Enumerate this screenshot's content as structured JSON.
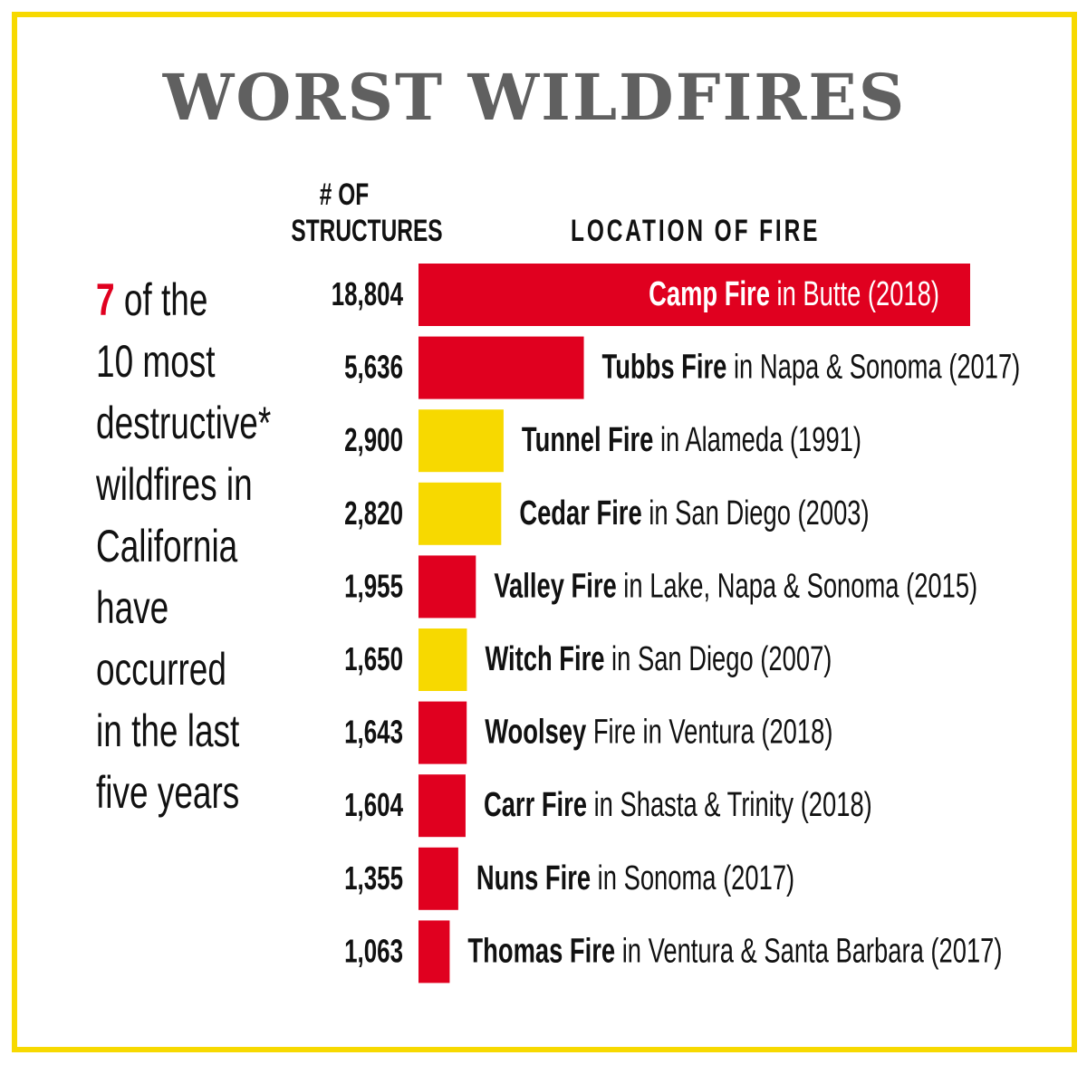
{
  "colors": {
    "recent": "#e0001f",
    "older": "#f7d900",
    "border": "#f7d900",
    "title": "#606060"
  },
  "chart_data": {
    "type": "bar",
    "orientation": "horizontal",
    "title": "WORST WILDFIRES",
    "value_header": [
      "# OF",
      "STRUCTURES"
    ],
    "label_header": "LOCATION OF FIRE",
    "rows": [
      {
        "value": 18804,
        "value_label": "18,804",
        "name": "Camp Fire",
        "rest": " in Butte (2018)",
        "recent": true
      },
      {
        "value": 5636,
        "value_label": "5,636",
        "name": "Tubbs Fire",
        "rest": " in Napa & Sonoma (2017)",
        "recent": true
      },
      {
        "value": 2900,
        "value_label": "2,900",
        "name": "Tunnel Fire",
        "rest": " in Alameda (1991)",
        "recent": false
      },
      {
        "value": 2820,
        "value_label": "2,820",
        "name": "Cedar Fire",
        "rest": " in San Diego (2003)",
        "recent": false
      },
      {
        "value": 1955,
        "value_label": "1,955",
        "name": "Valley Fire",
        "rest": " in Lake, Napa & Sonoma (2015)",
        "recent": true
      },
      {
        "value": 1650,
        "value_label": "1,650",
        "name": "Witch Fire",
        "rest": " in San Diego (2007)",
        "recent": false
      },
      {
        "value": 1643,
        "value_label": "1,643",
        "name": "Woolsey",
        "rest": " Fire in Ventura (2018)",
        "recent": true
      },
      {
        "value": 1604,
        "value_label": "1,604",
        "name": "Carr Fire",
        "rest": " in Shasta & Trinity (2018)",
        "recent": true
      },
      {
        "value": 1355,
        "value_label": "1,355",
        "name": "Nuns Fire",
        "rest": " in Sonoma (2017)",
        "recent": true
      },
      {
        "value": 1063,
        "value_label": "1,063",
        "name": "Thomas Fire",
        "rest": " in Ventura & Santa Barbara (2017)",
        "recent": true
      }
    ],
    "xlim": [
      0,
      18804
    ]
  },
  "side_note": {
    "highlight": "7",
    "lines": [
      " of the",
      "10 most",
      "destructive*",
      "wildfires in",
      "California",
      "have",
      "occurred",
      "in the last",
      "five years"
    ]
  }
}
